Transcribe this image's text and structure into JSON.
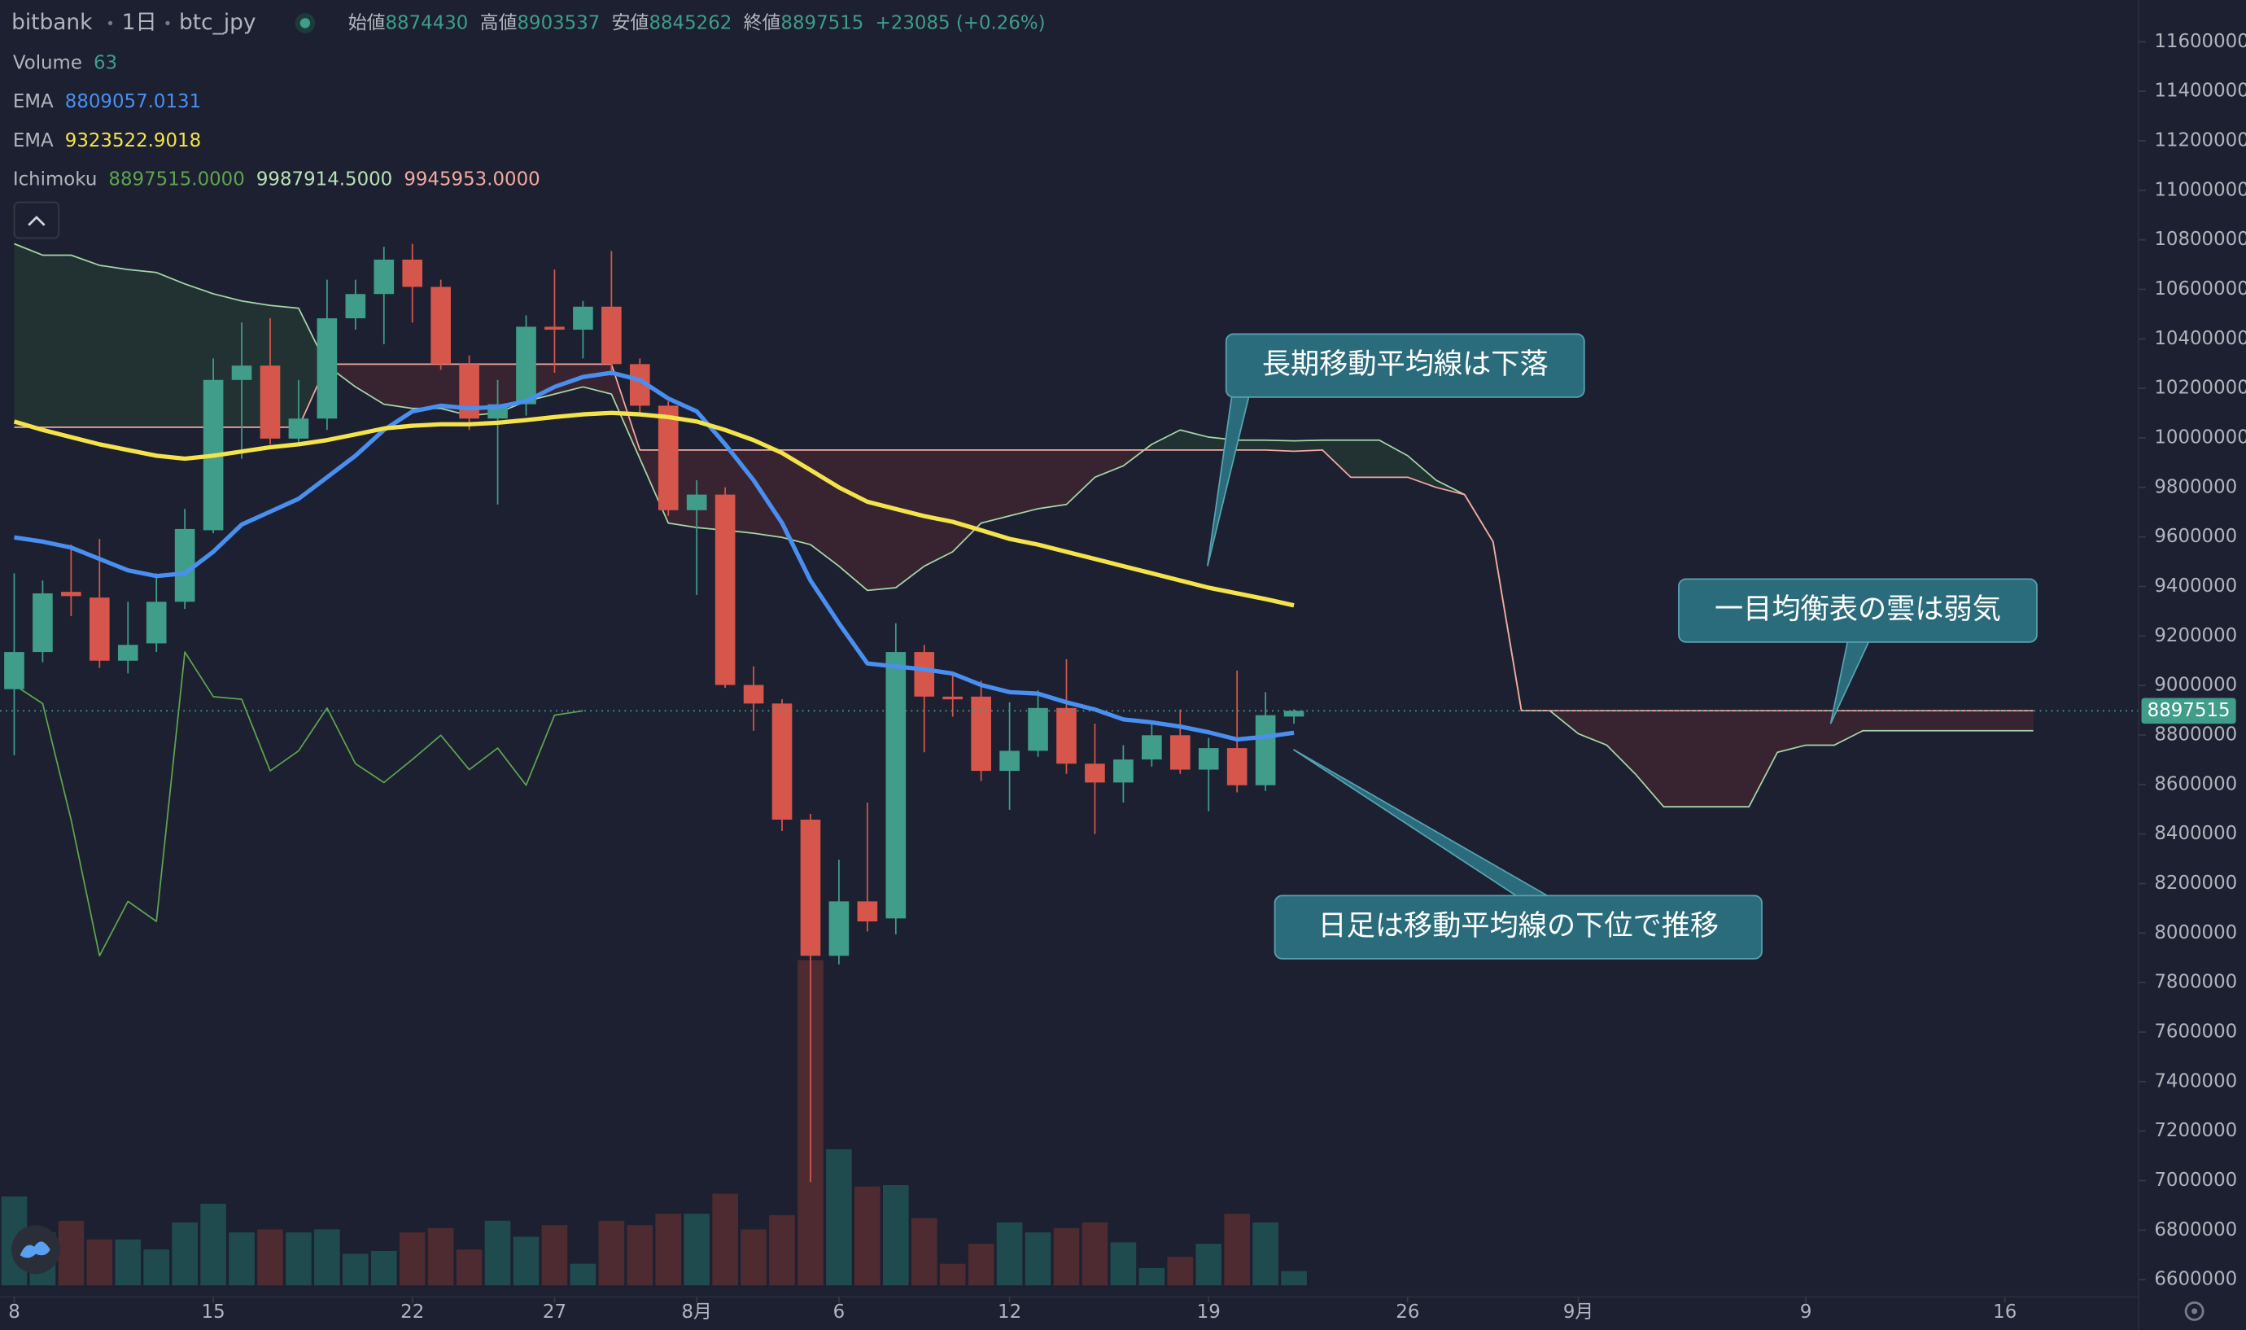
{
  "chart_data": {
    "type": "candlestick",
    "symbol": "bitbank",
    "interval": "1日",
    "pair": "btc_jpy",
    "ohlc_labels": [
      "始値",
      "高値",
      "安値",
      "終値"
    ],
    "change": "+23085 (+0.26%)",
    "up_color": "#3f9d8a",
    "down_color": "#d6564b",
    "x": [
      0,
      1,
      2,
      3,
      4,
      5,
      6,
      7,
      8,
      9,
      10,
      11,
      12,
      13,
      14,
      15,
      16,
      17,
      18,
      19,
      20,
      21,
      22,
      23,
      24,
      25,
      26,
      27,
      28,
      29,
      30,
      31,
      32,
      33,
      34,
      35,
      36,
      37,
      38,
      39,
      40,
      41,
      42,
      43,
      44,
      45
    ],
    "open": [
      8985000,
      9135000,
      9378000,
      9355000,
      9100000,
      9170000,
      9338000,
      9627000,
      10234000,
      10292000,
      9997000,
      10078000,
      10483000,
      10581000,
      10720000,
      10610000,
      10298000,
      10078000,
      10136000,
      10449000,
      10437000,
      10530000,
      10298000,
      10130000,
      9708000,
      9771000,
      9002000,
      8927000,
      8458000,
      7908000,
      8128000,
      8059000,
      9135000,
      8955000,
      8955000,
      8655000,
      8736000,
      8909000,
      8684000,
      8608000,
      8701000,
      8799000,
      8660000,
      8747000,
      8597000,
      8874430
    ],
    "high": [
      9453000,
      9424000,
      9569000,
      9592000,
      9338000,
      9453000,
      9713000,
      10321000,
      10466000,
      10483000,
      10234000,
      10639000,
      10639000,
      10772000,
      10784000,
      10639000,
      10333000,
      10234000,
      10495000,
      10680000,
      10553000,
      10755000,
      10321000,
      10148000,
      9829000,
      9800000,
      9077000,
      8944000,
      8481000,
      8296000,
      8527000,
      9251000,
      9164000,
      9048000,
      9019000,
      8932000,
      8980000,
      9106000,
      8846000,
      8759000,
      8846000,
      8903000,
      8788000,
      9060000,
      8973000,
      8903537
    ],
    "low": [
      8718000,
      9094000,
      9280000,
      9071000,
      9048000,
      9135000,
      9309000,
      9615000,
      9916000,
      9974000,
      9974000,
      10032000,
      10437000,
      10379000,
      10466000,
      10275000,
      10032000,
      9731000,
      10090000,
      10263000,
      10321000,
      10252000,
      10090000,
      9685000,
      9366000,
      8990000,
      8817000,
      8412000,
      6994000,
      7873000,
      8006000,
      7995000,
      8730000,
      8874000,
      8614000,
      8498000,
      8712000,
      8643000,
      8400000,
      8527000,
      8672000,
      8643000,
      8492000,
      8568000,
      8574000,
      8845262
    ],
    "close": [
      9135000,
      9372000,
      9361000,
      9100000,
      9164000,
      9338000,
      9632000,
      10234000,
      10292000,
      9997000,
      10078000,
      10483000,
      10581000,
      10720000,
      10610000,
      10298000,
      10078000,
      10136000,
      10449000,
      10437000,
      10530000,
      10298000,
      10130000,
      9708000,
      9771000,
      9002000,
      8927000,
      8458000,
      7908000,
      8128000,
      8047000,
      9135000,
      8955000,
      8944000,
      8655000,
      8736000,
      8909000,
      8684000,
      8608000,
      8701000,
      8799000,
      8660000,
      8747000,
      8597000,
      8880000,
      8897515
    ],
    "volume": {
      "name": "Volume",
      "up_color": "#1f4a4e",
      "down_color": "#4e2a31",
      "values": [
        391,
        233,
        284,
        202,
        202,
        158,
        277,
        359,
        233,
        246,
        233,
        246,
        139,
        151,
        233,
        252,
        158,
        284,
        214,
        265,
        95,
        284,
        265,
        315,
        315,
        403,
        246,
        309,
        1430,
        599,
        435,
        441,
        296,
        95,
        183,
        277,
        233,
        252,
        277,
        189,
        76,
        126,
        183,
        315,
        277,
        63
      ]
    },
    "series": [
      {
        "name": "EMA",
        "color": "#4a8ff0",
        "values": [
          9598000,
          9581000,
          9557000,
          9511000,
          9465000,
          9442000,
          9453000,
          9540000,
          9650000,
          9702000,
          9754000,
          9841000,
          9928000,
          10032000,
          10107000,
          10130000,
          10119000,
          10125000,
          10148000,
          10206000,
          10246000,
          10263000,
          10234000,
          10159000,
          10107000,
          9974000,
          9829000,
          9656000,
          9424000,
          9251000,
          9089000,
          9077000,
          9065000,
          9048000,
          9002000,
          8973000,
          8967000,
          8932000,
          8903000,
          8863000,
          8851000,
          8834000,
          8811000,
          8782000,
          8793000,
          8809057.0131
        ]
      },
      {
        "name": "EMA",
        "color": "#f4e34b",
        "values": [
          10066000,
          10032000,
          10003000,
          9974000,
          9951000,
          9928000,
          9916000,
          9928000,
          9945000,
          9962000,
          9974000,
          9991000,
          10014000,
          10038000,
          10049000,
          10055000,
          10055000,
          10061000,
          10072000,
          10084000,
          10095000,
          10101000,
          10095000,
          10084000,
          10066000,
          10032000,
          9991000,
          9939000,
          9870000,
          9800000,
          9742000,
          9713000,
          9684000,
          9661000,
          9627000,
          9592000,
          9569000,
          9540000,
          9511000,
          9482000,
          9453000,
          9424000,
          9395000,
          9372000,
          9349000,
          9323522.9018
        ]
      }
    ],
    "ichimoku": {
      "name": "Ichimoku",
      "legend_labels": [
        "8897515.0000",
        "9987914.5000",
        "9945953.0000"
      ],
      "legend_colors": [
        "#5ea34f",
        "#b9e0b5",
        "#f2a9a0"
      ],
      "up_cloud_color": "rgba(76,175,80,0.13)",
      "down_cloud_color": "rgba(244,67,54,0.13)",
      "lagging": {
        "color": "#5ea34f",
        "x": [
          0,
          1,
          2,
          3,
          4,
          5,
          6,
          7,
          8,
          9,
          10,
          11,
          12,
          13,
          14,
          15,
          16,
          17,
          18,
          19,
          20
        ],
        "values": [
          9002000,
          8927000,
          8458000,
          7908000,
          8128000,
          8047000,
          9135000,
          8955000,
          8944000,
          8655000,
          8736000,
          8909000,
          8684000,
          8608000,
          8701000,
          8799000,
          8660000,
          8747000,
          8597000,
          8880000,
          8897515
        ]
      },
      "lead_a": {
        "color": "#a5d6a7",
        "x": [
          0,
          1,
          2,
          3,
          4,
          5,
          6,
          7,
          8,
          9,
          10,
          11,
          12,
          13,
          14,
          15,
          16,
          17,
          18,
          19,
          20,
          21,
          22,
          23,
          24,
          25,
          26,
          27,
          28,
          29,
          30,
          31,
          32,
          33,
          34,
          35,
          36,
          37,
          38,
          39,
          40,
          41,
          42,
          43,
          44,
          45,
          46,
          47,
          48,
          49,
          50,
          51,
          52,
          53,
          54,
          55,
          56,
          57,
          58,
          59,
          60,
          61,
          62,
          63,
          64,
          65,
          66,
          67,
          68,
          69,
          70,
          71
        ],
        "values": [
          10784000,
          10738000,
          10738000,
          10697000,
          10680000,
          10668000,
          10622000,
          10582000,
          10553000,
          10535000,
          10524000,
          10292000,
          10206000,
          10136000,
          10119000,
          10119000,
          10090000,
          10101000,
          10148000,
          10177000,
          10206000,
          10177000,
          9916000,
          9656000,
          9638000,
          9627000,
          9615000,
          9598000,
          9569000,
          9482000,
          9384000,
          9395000,
          9482000,
          9540000,
          9656000,
          9685000,
          9714000,
          9731000,
          9841000,
          9887000,
          9974000,
          10032000,
          10003000,
          9991000,
          9991000,
          9987914.5,
          9991000,
          9991000,
          9991000,
          9928000,
          9829000,
          9771000,
          9581000,
          8898000,
          8898000,
          8805000,
          8759000,
          8643000,
          8510000,
          8510000,
          8510000,
          8510000,
          8730000,
          8759000,
          8759000,
          8817000,
          8817000,
          8817000,
          8817000,
          8817000,
          8817000,
          8817000
        ]
      },
      "lead_b": {
        "color": "#f2a9a0",
        "x": [
          0,
          1,
          2,
          3,
          4,
          5,
          6,
          7,
          8,
          9,
          10,
          11,
          12,
          13,
          14,
          15,
          16,
          17,
          18,
          19,
          20,
          21,
          22,
          23,
          24,
          25,
          26,
          27,
          28,
          29,
          30,
          31,
          32,
          33,
          34,
          35,
          36,
          37,
          38,
          39,
          40,
          41,
          42,
          43,
          44,
          45,
          46,
          47,
          48,
          49,
          50,
          51,
          52,
          53,
          54,
          55,
          56,
          57,
          58,
          59,
          60,
          61,
          62,
          63,
          64,
          65,
          66,
          67,
          68,
          69,
          70,
          71
        ],
        "values": [
          10043000,
          10043000,
          10043000,
          10043000,
          10043000,
          10043000,
          10043000,
          10043000,
          10043000,
          10043000,
          10043000,
          10298000,
          10298000,
          10298000,
          10298000,
          10298000,
          10298000,
          10298000,
          10298000,
          10298000,
          10298000,
          10298000,
          9951000,
          9951000,
          9951000,
          9951000,
          9951000,
          9951000,
          9951000,
          9951000,
          9951000,
          9951000,
          9951000,
          9951000,
          9951000,
          9951000,
          9951000,
          9951000,
          9951000,
          9951000,
          9951000,
          9951000,
          9951000,
          9951000,
          9951000,
          9945953,
          9951000,
          9841000,
          9841000,
          9841000,
          9800000,
          9771000,
          9581000,
          8898000,
          8898000,
          8898000,
          8898000,
          8898000,
          8898000,
          8898000,
          8898000,
          8898000,
          8898000,
          8898000,
          8898000,
          8898000,
          8898000,
          8898000,
          8898000,
          8898000,
          8898000,
          8898000
        ]
      }
    },
    "annotations": [
      {
        "text": "長期移動平均線は下落"
      },
      {
        "text": "一目均衡表の雲は弱気"
      },
      {
        "text": "日足は移動平均線の下位で推移"
      }
    ],
    "xlim": [
      -0.5,
      74.7
    ],
    "xticks": [
      {
        "value": 0,
        "label": "8"
      },
      {
        "value": 7,
        "label": "15"
      },
      {
        "value": 14,
        "label": "22"
      },
      {
        "value": 19,
        "label": "27"
      },
      {
        "value": 24,
        "label": "8月"
      },
      {
        "value": 29,
        "label": "6"
      },
      {
        "value": 35,
        "label": "12"
      },
      {
        "value": 42,
        "label": "19"
      },
      {
        "value": 49,
        "label": "26"
      },
      {
        "value": 55,
        "label": "9月"
      },
      {
        "value": 63,
        "label": "9"
      },
      {
        "value": 70,
        "label": "16"
      }
    ],
    "ylim": [
      6530600,
      11767800
    ],
    "yticks": [
      6600000,
      6800000,
      7000000,
      7200000,
      7400000,
      7600000,
      7800000,
      8000000,
      8200000,
      8400000,
      8600000,
      8800000,
      9000000,
      9200000,
      9400000,
      9600000,
      9800000,
      10000000,
      10200000,
      10400000,
      10600000,
      10800000,
      11000000,
      11200000,
      11400000,
      11600000
    ],
    "grid": false,
    "last_price_line": true
  }
}
